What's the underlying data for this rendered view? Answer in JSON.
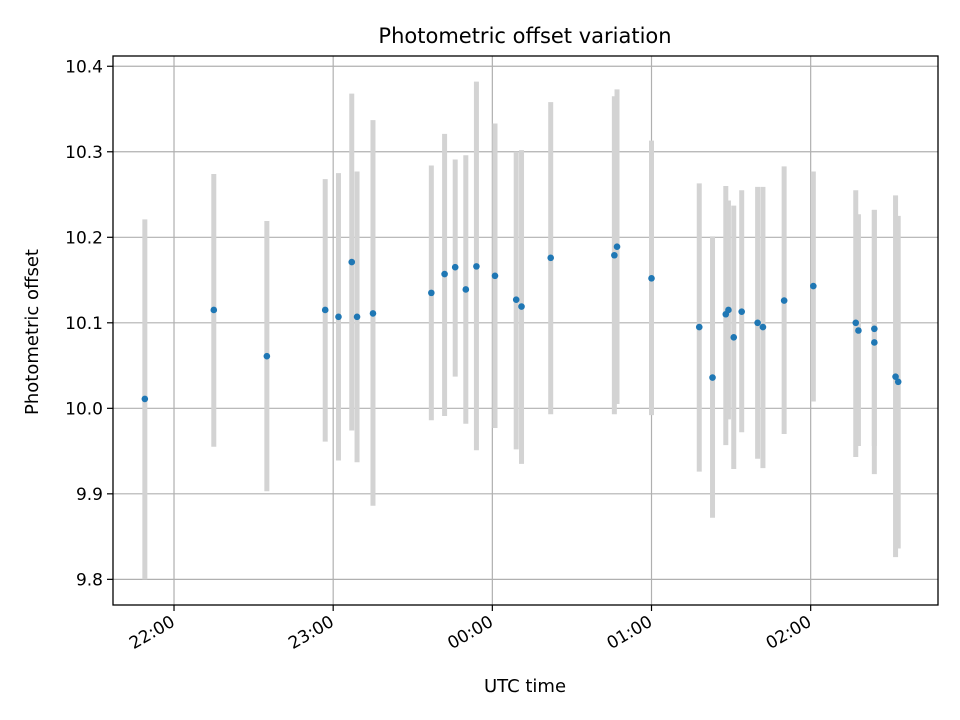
{
  "chart_data": {
    "type": "scatter",
    "title": "Photometric offset variation",
    "xlabel": "UTC time",
    "ylabel": "Photometric offset",
    "x_tick_labels": [
      "22:00",
      "23:00",
      "00:00",
      "01:00",
      "02:00"
    ],
    "y_tick_labels": [
      "9.8",
      "9.9",
      "10.0",
      "10.1",
      "10.2",
      "10.3",
      "10.4"
    ],
    "x_ticks": [
      "22:00",
      "23:00",
      "00:00",
      "01:00",
      "02:00"
    ],
    "y_ticks": [
      9.8,
      9.9,
      10.0,
      10.1,
      10.2,
      10.3,
      10.4
    ],
    "xlim": [
      "21:37",
      "02:48"
    ],
    "ylim": [
      9.77,
      10.412
    ],
    "grid": true,
    "marker_color": "#1f77b4",
    "errorbar_color": "#d3d3d3",
    "points": [
      {
        "t": "21:49",
        "y": 10.011,
        "lo": 9.8,
        "hi": 10.221
      },
      {
        "t": "22:15",
        "y": 10.115,
        "lo": 9.955,
        "hi": 10.274
      },
      {
        "t": "22:35",
        "y": 10.061,
        "lo": 9.903,
        "hi": 10.219
      },
      {
        "t": "22:57",
        "y": 10.115,
        "lo": 9.961,
        "hi": 10.268
      },
      {
        "t": "23:02",
        "y": 10.107,
        "lo": 9.939,
        "hi": 10.275
      },
      {
        "t": "23:07",
        "y": 10.171,
        "lo": 9.974,
        "hi": 10.368
      },
      {
        "t": "23:09",
        "y": 10.107,
        "lo": 9.937,
        "hi": 10.277
      },
      {
        "t": "23:15",
        "y": 10.111,
        "lo": 9.886,
        "hi": 10.337
      },
      {
        "t": "23:37",
        "y": 10.135,
        "lo": 9.986,
        "hi": 10.284
      },
      {
        "t": "23:42",
        "y": 10.157,
        "lo": 9.991,
        "hi": 10.321
      },
      {
        "t": "23:46",
        "y": 10.165,
        "lo": 10.037,
        "hi": 10.291
      },
      {
        "t": "23:50",
        "y": 10.139,
        "lo": 9.982,
        "hi": 10.296
      },
      {
        "t": "23:54",
        "y": 10.166,
        "lo": 9.951,
        "hi": 10.382
      },
      {
        "t": "00:01",
        "y": 10.155,
        "lo": 9.977,
        "hi": 10.333
      },
      {
        "t": "00:09",
        "y": 10.127,
        "lo": 9.952,
        "hi": 10.3
      },
      {
        "t": "00:11",
        "y": 10.119,
        "lo": 9.935,
        "hi": 10.302
      },
      {
        "t": "00:22",
        "y": 10.176,
        "lo": 9.993,
        "hi": 10.358
      },
      {
        "t": "00:46",
        "y": 10.179,
        "lo": 9.993,
        "hi": 10.365
      },
      {
        "t": "00:47",
        "y": 10.189,
        "lo": 10.005,
        "hi": 10.373
      },
      {
        "t": "01:00",
        "y": 10.152,
        "lo": 9.992,
        "hi": 10.313
      },
      {
        "t": "01:18",
        "y": 10.095,
        "lo": 9.926,
        "hi": 10.263
      },
      {
        "t": "01:23",
        "y": 10.036,
        "lo": 9.872,
        "hi": 10.201
      },
      {
        "t": "01:28",
        "y": 10.11,
        "lo": 9.957,
        "hi": 10.26
      },
      {
        "t": "01:29",
        "y": 10.115,
        "lo": 9.987,
        "hi": 10.243
      },
      {
        "t": "01:31",
        "y": 10.083,
        "lo": 9.929,
        "hi": 10.237
      },
      {
        "t": "01:34",
        "y": 10.113,
        "lo": 9.972,
        "hi": 10.255
      },
      {
        "t": "01:40",
        "y": 10.1,
        "lo": 9.941,
        "hi": 10.259
      },
      {
        "t": "01:42",
        "y": 10.095,
        "lo": 9.93,
        "hi": 10.259
      },
      {
        "t": "01:50",
        "y": 10.126,
        "lo": 9.97,
        "hi": 10.283
      },
      {
        "t": "02:01",
        "y": 10.143,
        "lo": 10.008,
        "hi": 10.277
      },
      {
        "t": "02:17",
        "y": 10.1,
        "lo": 9.943,
        "hi": 10.255
      },
      {
        "t": "02:18",
        "y": 10.091,
        "lo": 9.956,
        "hi": 10.227
      },
      {
        "t": "02:24",
        "y": 10.093,
        "lo": 9.956,
        "hi": 10.232
      },
      {
        "t": "02:24",
        "y": 10.077,
        "lo": 9.923,
        "hi": 10.232
      },
      {
        "t": "02:32",
        "y": 10.037,
        "lo": 9.826,
        "hi": 10.249
      },
      {
        "t": "02:33",
        "y": 10.031,
        "lo": 9.836,
        "hi": 10.225
      }
    ]
  }
}
